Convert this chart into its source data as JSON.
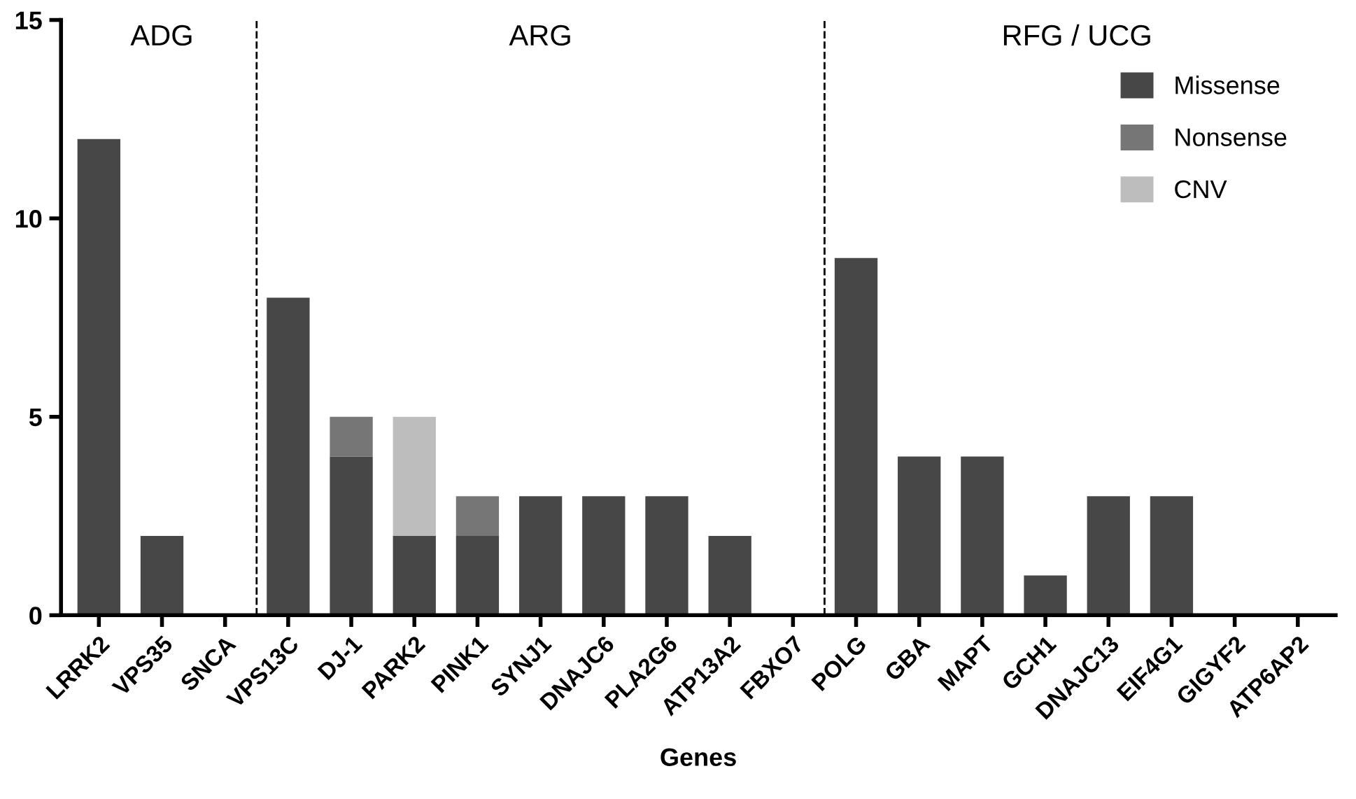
{
  "chart_data": {
    "type": "bar",
    "stacked": true,
    "xlabel": "Genes",
    "categories": [
      "LRRK2",
      "VPS35",
      "SNCA",
      "VPS13C",
      "DJ-1",
      "PARK2",
      "PINK1",
      "SYNJ1",
      "DNAJC6",
      "PLA2G6",
      "ATP13A2",
      "FBXO7",
      "POLG",
      "GBA",
      "MAPT",
      "GCH1",
      "DNAJC13",
      "EIF4G1",
      "GIGYF2",
      "ATP6AP2"
    ],
    "series": [
      {
        "name": "Missense",
        "color": "#474747",
        "values": [
          12,
          2,
          0,
          8,
          4,
          2,
          2,
          3,
          3,
          3,
          2,
          0,
          9,
          4,
          4,
          1,
          3,
          3,
          0,
          0
        ]
      },
      {
        "name": "Nonsense",
        "color": "#767676",
        "values": [
          0,
          0,
          0,
          0,
          1,
          0,
          1,
          0,
          0,
          0,
          0,
          0,
          0,
          0,
          0,
          0,
          0,
          0,
          0,
          0
        ]
      },
      {
        "name": "CNV",
        "color": "#bdbdbd",
        "values": [
          0,
          0,
          0,
          0,
          0,
          3,
          0,
          0,
          0,
          0,
          0,
          0,
          0,
          0,
          0,
          0,
          0,
          0,
          0,
          0
        ]
      }
    ],
    "ylim": [
      0,
      15
    ],
    "yticks": [
      0,
      5,
      10,
      15
    ],
    "grid": false,
    "legend": "top right",
    "annotations": [
      "ADG",
      "ARG",
      "RFG / UCG"
    ]
  }
}
